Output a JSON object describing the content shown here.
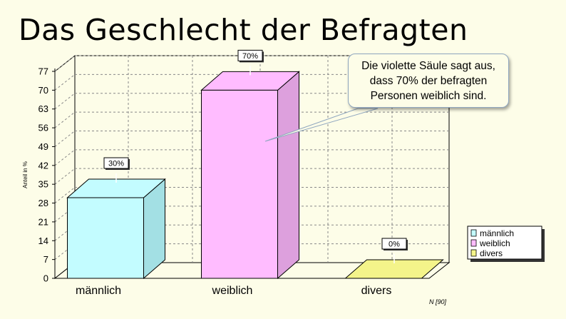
{
  "chart_data": {
    "type": "bar",
    "title": "Das Geschlecht der Befragten",
    "ylabel": "Anteil in %",
    "xlabel": "",
    "categories": [
      "männlich",
      "weiblich",
      "divers"
    ],
    "values": [
      30,
      70,
      0
    ],
    "data_labels": [
      "30%",
      "70%",
      "0%"
    ],
    "colors": [
      "#c3fcff",
      "#ffbcff",
      "#f4f48a"
    ],
    "side_colors": [
      "#a3e0e4",
      "#dda0dd",
      "#d8d86a"
    ],
    "ylim": [
      0,
      77
    ],
    "yticks": [
      0,
      7,
      14,
      21,
      28,
      35,
      42,
      49,
      56,
      63,
      70,
      77
    ],
    "grid": true,
    "legend": {
      "placement": "right",
      "entries": [
        {
          "label": "männlich",
          "color": "#c3fcff"
        },
        {
          "label": "weiblich",
          "color": "#ffbcff"
        },
        {
          "label": "divers",
          "color": "#f4f48a"
        }
      ]
    },
    "annotation": "Die violette Säule sagt aus, dass 70% der befragten Personen weiblich sind.",
    "note": "N [90]"
  }
}
